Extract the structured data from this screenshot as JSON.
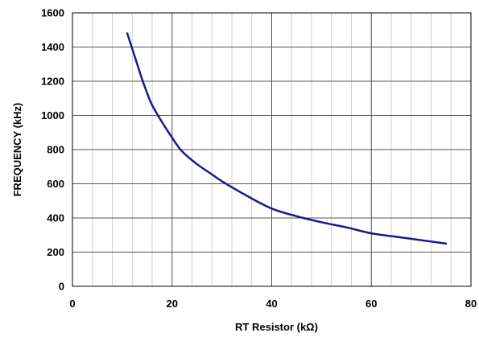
{
  "chart_data": {
    "type": "line",
    "title": "",
    "xlabel": "RT Resistor (kΩ)",
    "ylabel": "FREQUENCY (kHz)",
    "xlim": [
      0,
      80
    ],
    "ylim": [
      0,
      1600
    ],
    "x_ticks": [
      0,
      20,
      40,
      60,
      80
    ],
    "y_ticks": [
      0,
      200,
      400,
      600,
      800,
      1000,
      1200,
      1400,
      1600
    ],
    "x_tick_labels": [
      "0",
      "20",
      "40",
      "60",
      "80"
    ],
    "y_tick_labels": [
      "0",
      "200",
      "400",
      "600",
      "800",
      "1000",
      "1200",
      "1400",
      "1600"
    ],
    "major_grid": true,
    "minor_x_step": 4,
    "line_color": "#1a1a8c",
    "series": [
      {
        "x": [
          11,
          12,
          13,
          14,
          15,
          16,
          18,
          20,
          22,
          25,
          28,
          30,
          35,
          40,
          45,
          50,
          55,
          60,
          65,
          70,
          75
        ],
        "y": [
          1480,
          1390,
          1300,
          1210,
          1130,
          1060,
          960,
          870,
          790,
          715,
          655,
          615,
          530,
          455,
          410,
          375,
          345,
          310,
          290,
          270,
          250
        ]
      }
    ]
  }
}
